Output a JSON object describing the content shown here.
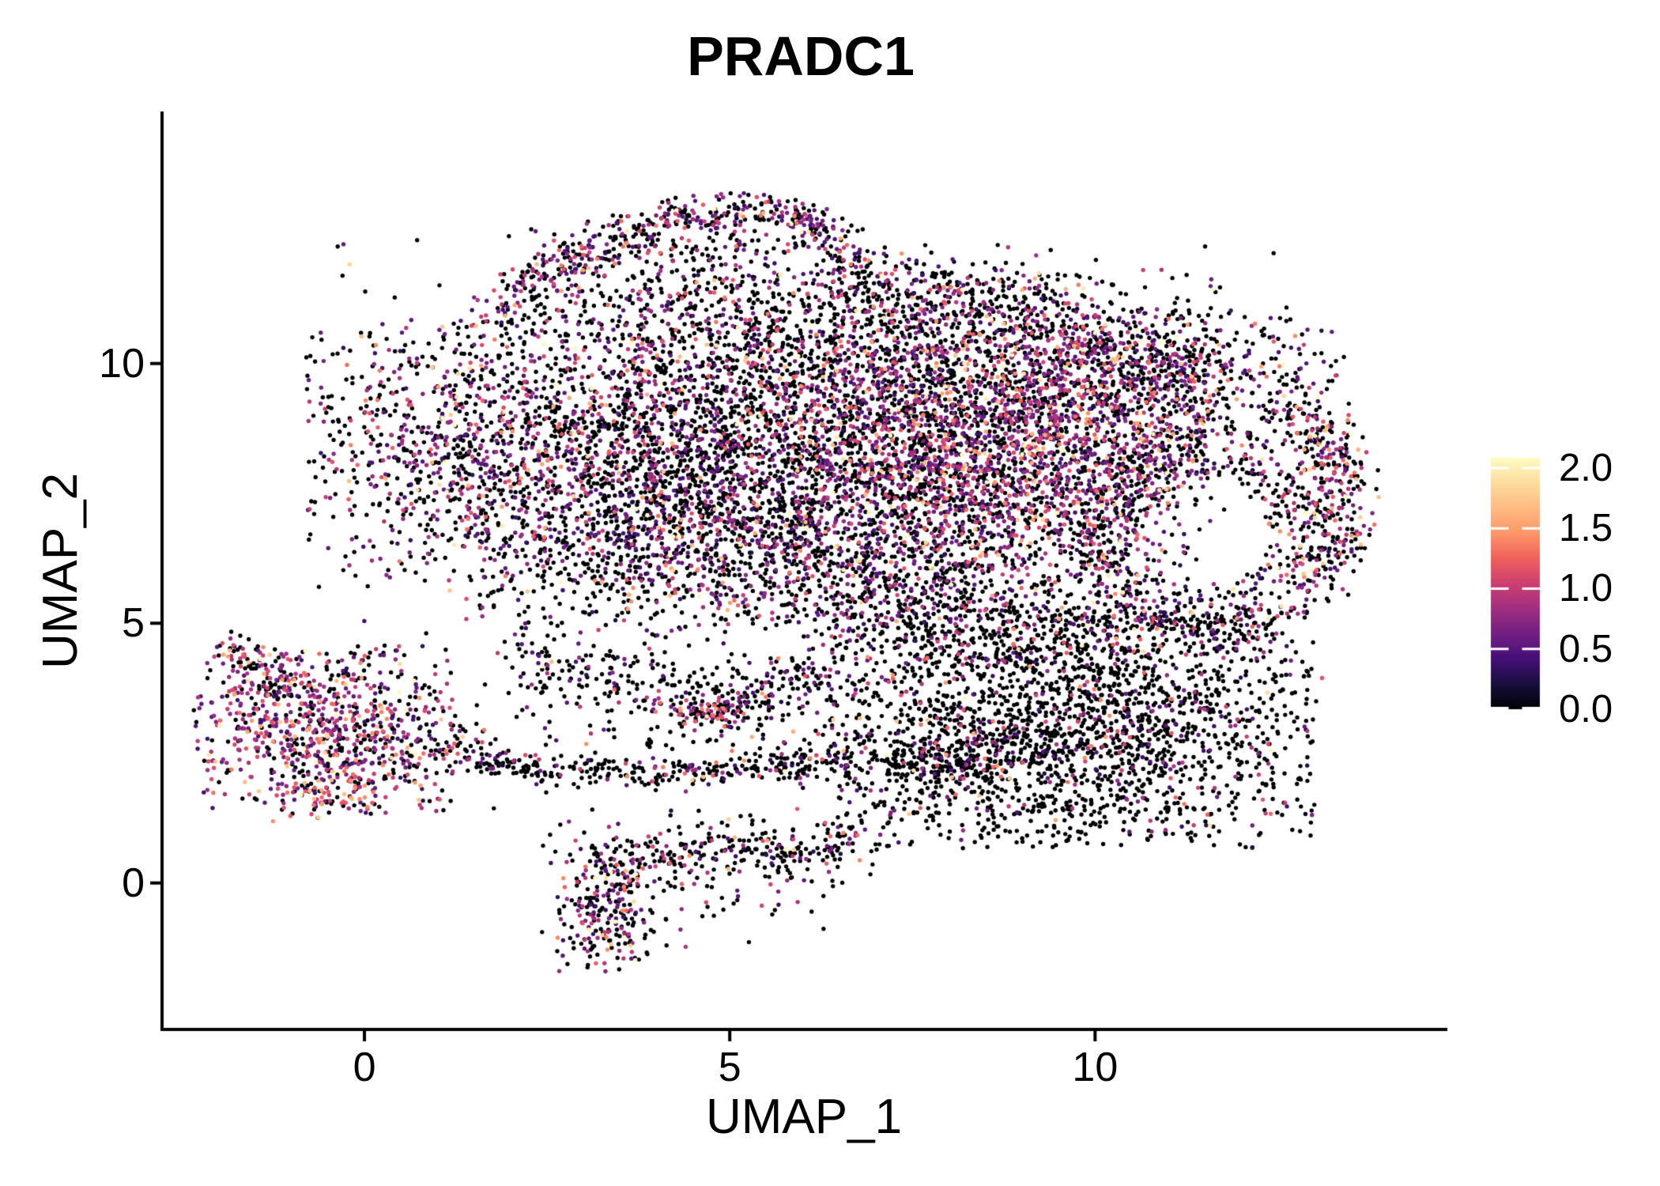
{
  "title": "PRADC1",
  "axes": {
    "x_label": "UMAP_1",
    "y_label": "UMAP_2"
  },
  "colorbar_tick_labels": [
    "2.0",
    "1.5",
    "1.0",
    "0.5",
    "0.0"
  ],
  "chart_data": {
    "type": "scatter",
    "title": "PRADC1",
    "xlabel": "UMAP_1",
    "ylabel": "UMAP_2",
    "xlim": [
      -2.77,
      14.8
    ],
    "ylim": [
      -2.82,
      14.82
    ],
    "x_ticks": [
      {
        "label": "0",
        "value": 0
      },
      {
        "label": "5",
        "value": 5
      },
      {
        "label": "10",
        "value": 10
      }
    ],
    "y_ticks": [
      {
        "label": "0",
        "value": 0
      },
      {
        "label": "5",
        "value": 5
      },
      {
        "label": "10",
        "value": 10
      }
    ],
    "grid": false,
    "legend_position": "right",
    "point_radius_px": 2.7,
    "seed": 42,
    "axis_color": "#000000",
    "background_color": "#ffffff",
    "color_scale": {
      "name": "magma",
      "domain": [
        0,
        2.085
      ],
      "stops": [
        [
          0.0,
          "#000004"
        ],
        [
          0.1,
          "#180f3e"
        ],
        [
          0.2,
          "#451077"
        ],
        [
          0.3,
          "#721f81"
        ],
        [
          0.4,
          "#9f2f7f"
        ],
        [
          0.5,
          "#cd4071"
        ],
        [
          0.6,
          "#f1605d"
        ],
        [
          0.7,
          "#fd9668"
        ],
        [
          0.8,
          "#febb81"
        ],
        [
          0.9,
          "#fddc9e"
        ],
        [
          1.0,
          "#fcfdbf"
        ]
      ]
    },
    "colorbar": {
      "min": 0,
      "max": 2.085,
      "tick_values": [
        2.0,
        1.5,
        1.0,
        0.5,
        0.0
      ],
      "tick_labels": [
        "2.0",
        "1.5",
        "1.0",
        "0.5",
        "0.0"
      ],
      "tick_mark_color": "#ffffff"
    },
    "clusters": [
      {
        "name": "top-ridge",
        "kind": "path",
        "pts": [
          [
            1.8,
            10.95
          ],
          [
            2.5,
            11.7
          ],
          [
            3.3,
            12.3
          ],
          [
            4.2,
            12.75
          ],
          [
            5.1,
            12.95
          ],
          [
            5.9,
            12.8
          ],
          [
            6.45,
            12.35
          ]
        ],
        "w": 0.22,
        "n": 420,
        "pzero": 0.45,
        "vmean": 0.75,
        "vsd": 0.5
      },
      {
        "name": "top-fill",
        "kind": "ellipse",
        "cx": 4.35,
        "cy": 11.7,
        "sx": 1.35,
        "sy": 0.75,
        "n": 380,
        "pzero": 0.68,
        "vmean": 0.7,
        "vsd": 0.5
      },
      {
        "name": "top-arm-east",
        "kind": "path",
        "pts": [
          [
            6.5,
            12.2
          ],
          [
            7.0,
            11.7
          ],
          [
            7.4,
            11.15
          ]
        ],
        "w": 0.3,
        "n": 90,
        "pzero": 0.6,
        "vmean": 0.75,
        "vsd": 0.5
      },
      {
        "name": "top-east-scatter",
        "kind": "ellipse",
        "cx": 7.9,
        "cy": 11.25,
        "sx": 0.95,
        "sy": 0.55,
        "n": 120,
        "pzero": 0.7,
        "vmean": 0.7,
        "vsd": 0.5
      },
      {
        "name": "neck-sparse",
        "kind": "ellipse",
        "cx": 5.6,
        "cy": 10.5,
        "sx": 1.5,
        "sy": 0.6,
        "n": 170,
        "pzero": 0.72,
        "vmean": 0.7,
        "vsd": 0.5
      },
      {
        "name": "upper-band",
        "kind": "ellipse",
        "cx": 7.6,
        "cy": 10.3,
        "sx": 2.3,
        "sy": 0.85,
        "n": 950,
        "pzero": 0.6,
        "vmean": 0.75,
        "vsd": 0.5
      },
      {
        "name": "northeast-edge",
        "kind": "path",
        "pts": [
          [
            7.5,
            11.6
          ],
          [
            8.6,
            11.2
          ],
          [
            9.6,
            10.7
          ],
          [
            10.5,
            10.15
          ],
          [
            11.3,
            9.55
          ]
        ],
        "w": 0.35,
        "n": 260,
        "pzero": 0.55,
        "vmean": 0.8,
        "vsd": 0.5
      },
      {
        "name": "northeast-bulge",
        "kind": "ellipse",
        "cx": 10.9,
        "cy": 9.8,
        "sx": 1.4,
        "sy": 0.75,
        "n": 550,
        "pzero": 0.55,
        "vmean": 0.8,
        "vsd": 0.5
      },
      {
        "name": "west-lobe",
        "kind": "ellipse",
        "cx": 2.8,
        "cy": 8.3,
        "sx": 2.0,
        "sy": 1.45,
        "n": 2250,
        "pzero": 0.6,
        "vmean": 0.72,
        "vsd": 0.5
      },
      {
        "name": "center-mass",
        "kind": "ellipse",
        "cx": 5.9,
        "cy": 7.9,
        "sx": 1.6,
        "sy": 1.4,
        "n": 1350,
        "pzero": 0.66,
        "vmean": 0.72,
        "vsd": 0.5
      },
      {
        "name": "east-dense",
        "kind": "ellipse",
        "cx": 8.7,
        "cy": 8.2,
        "sx": 1.6,
        "sy": 1.25,
        "n": 2300,
        "pzero": 0.48,
        "vmean": 0.8,
        "vsd": 0.5
      },
      {
        "name": "east-ring",
        "kind": "annulus",
        "cx": 11.45,
        "cy": 6.6,
        "rx": 1.35,
        "ry": 1.75,
        "band": 0.5,
        "n": 640,
        "pzero": 0.62,
        "vmean": 0.75,
        "vsd": 0.5
      },
      {
        "name": "far-east-strip",
        "kind": "path",
        "pts": [
          [
            13.0,
            5.7
          ],
          [
            13.3,
            6.6
          ],
          [
            13.4,
            7.6
          ],
          [
            13.2,
            8.5
          ],
          [
            12.7,
            9.2
          ]
        ],
        "w": 0.28,
        "n": 360,
        "pzero": 0.5,
        "vmean": 0.9,
        "vsd": 0.45
      },
      {
        "name": "south-shelf",
        "kind": "ellipse",
        "cx": 5.5,
        "cy": 5.95,
        "sx": 2.3,
        "sy": 0.7,
        "n": 780,
        "pzero": 0.62,
        "vmean": 0.72,
        "vsd": 0.5
      },
      {
        "name": "south-shelf-east",
        "kind": "ellipse",
        "cx": 9.3,
        "cy": 5.2,
        "sx": 1.6,
        "sy": 0.6,
        "n": 400,
        "pzero": 0.72,
        "vmean": 0.72,
        "vsd": 0.5
      },
      {
        "name": "south-gap-scatter",
        "kind": "ellipse",
        "cx": 7.3,
        "cy": 4.9,
        "sx": 0.9,
        "sy": 0.55,
        "n": 140,
        "pzero": 0.75,
        "vmean": 0.7,
        "vsd": 0.5
      },
      {
        "name": "archipelago-band",
        "kind": "path",
        "pts": [
          [
            1.4,
            2.4
          ],
          [
            2.5,
            2.2
          ],
          [
            4.0,
            2.1
          ],
          [
            5.3,
            2.25
          ],
          [
            6.6,
            2.35
          ]
        ],
        "w": 0.16,
        "n": 300,
        "pzero": 0.8,
        "vmean": 0.7,
        "vsd": 0.5
      },
      {
        "name": "archipelago-shelf",
        "kind": "path",
        "pts": [
          [
            2.2,
            4.35
          ],
          [
            3.2,
            3.9
          ],
          [
            4.6,
            3.6
          ],
          [
            5.6,
            3.85
          ],
          [
            6.5,
            3.95
          ]
        ],
        "w": 0.3,
        "n": 290,
        "pzero": 0.72,
        "vmean": 0.7,
        "vsd": 0.5
      },
      {
        "name": "archipelago-knot",
        "kind": "ellipse",
        "cx": 4.75,
        "cy": 3.25,
        "sx": 0.27,
        "sy": 0.2,
        "n": 60,
        "pzero": 0.4,
        "vmean": 0.8,
        "vsd": 0.4
      },
      {
        "name": "archipelago-fill",
        "kind": "ellipse",
        "cx": 4.5,
        "cy": 3.1,
        "sx": 1.9,
        "sy": 0.9,
        "n": 210,
        "pzero": 0.82,
        "vmean": 0.7,
        "vsd": 0.5
      },
      {
        "name": "southeast-lobe",
        "kind": "ellipse",
        "cx": 9.7,
        "cy": 3.0,
        "sx": 1.85,
        "sy": 1.3,
        "n": 2100,
        "pzero": 0.86,
        "vmean": 0.7,
        "vsd": 0.5
      },
      {
        "name": "southeast-west-strings",
        "kind": "path",
        "pts": [
          [
            6.9,
            2.0
          ],
          [
            7.6,
            2.5
          ],
          [
            8.3,
            2.2
          ],
          [
            8.9,
            2.7
          ]
        ],
        "w": 0.3,
        "n": 190,
        "pzero": 0.8,
        "vmean": 0.7,
        "vsd": 0.5
      },
      {
        "name": "left-cluster",
        "kind": "ellipse",
        "cx": -0.55,
        "cy": 2.95,
        "sx": 1.0,
        "sy": 0.9,
        "n": 860,
        "pzero": 0.33,
        "vmean": 0.85,
        "vsd": 0.5
      },
      {
        "name": "left-arm",
        "kind": "path",
        "pts": [
          [
            -1.9,
            4.6
          ],
          [
            -1.5,
            4.2
          ],
          [
            -1.05,
            3.85
          ]
        ],
        "w": 0.18,
        "n": 70,
        "pzero": 0.5,
        "vmean": 0.8,
        "vsd": 0.5
      },
      {
        "name": "left-hotspot",
        "kind": "ellipse",
        "cx": -0.55,
        "cy": 1.6,
        "sx": 0.45,
        "sy": 0.25,
        "n": 55,
        "pzero": 0.25,
        "vmean": 1.3,
        "vsd": 0.25
      },
      {
        "name": "left-bridge",
        "kind": "ellipse",
        "cx": 0.95,
        "cy": 2.6,
        "sx": 0.5,
        "sy": 0.35,
        "n": 55,
        "pzero": 0.65,
        "vmean": 0.7,
        "vsd": 0.5
      },
      {
        "name": "bottom-knot",
        "kind": "ellipse",
        "cx": 3.3,
        "cy": -0.6,
        "sx": 0.38,
        "sy": 0.62,
        "n": 210,
        "pzero": 0.5,
        "vmean": 0.8,
        "vsd": 0.5
      },
      {
        "name": "bottom-band",
        "kind": "path",
        "pts": [
          [
            2.75,
            0.7
          ],
          [
            3.6,
            0.35
          ],
          [
            4.4,
            0.55
          ],
          [
            5.2,
            0.9
          ],
          [
            6.0,
            0.5
          ],
          [
            6.8,
            0.9
          ]
        ],
        "w": 0.28,
        "n": 270,
        "pzero": 0.72,
        "vmean": 0.8,
        "vsd": 0.5
      },
      {
        "name": "bottom-scatter",
        "kind": "ellipse",
        "cx": 4.7,
        "cy": 0.1,
        "sx": 1.3,
        "sy": 0.75,
        "n": 120,
        "pzero": 0.75,
        "vmean": 0.75,
        "vsd": 0.5
      },
      {
        "name": "stray-points",
        "kind": "box",
        "x0": -0.4,
        "x1": 13.2,
        "y0": 1.2,
        "y1": 12.4,
        "n": 230,
        "pzero": 0.72,
        "vmean": 0.72,
        "vsd": 0.5
      }
    ]
  }
}
